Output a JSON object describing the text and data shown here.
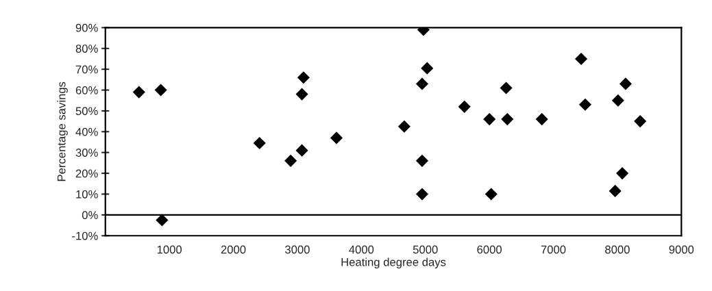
{
  "chart_data": {
    "type": "scatter",
    "xlabel": "Heating degree days",
    "ylabel": "Percentage savings",
    "x": [
      525,
      866,
      885,
      2409,
      2895,
      3071,
      3071,
      3096,
      3611,
      4670,
      4949,
      5027,
      4949,
      4949,
      4970,
      5610,
      6001,
      6028,
      6262,
      6280,
      6820,
      7434,
      7497,
      8010,
      8129,
      8077,
      7965,
      8356
    ],
    "values": [
      59,
      60,
      -2.5,
      34.5,
      26,
      31,
      58,
      66,
      37,
      42.5,
      63,
      70.5,
      26,
      10,
      89,
      52,
      46,
      10,
      61,
      46,
      46,
      75,
      53,
      55,
      63,
      20,
      11.5,
      45
    ],
    "color": "#000000",
    "marker": "diamond",
    "xlim": [
      0,
      9000
    ],
    "xticks": [
      1000,
      2000,
      3000,
      4000,
      5000,
      6000,
      7000,
      8000,
      9000
    ],
    "ylim": [
      -10,
      90
    ],
    "yticks": [
      {
        "value": -10,
        "label": "-10%"
      },
      {
        "value": 0,
        "label": "0%"
      },
      {
        "value": 10,
        "label": "10%"
      },
      {
        "value": 20,
        "label": "20%"
      },
      {
        "value": 30,
        "label": "30%"
      },
      {
        "value": 40,
        "label": "40%"
      },
      {
        "value": 50,
        "label": "50%"
      },
      {
        "value": 60,
        "label": "60%"
      },
      {
        "value": 70,
        "label": "70%"
      },
      {
        "value": 80,
        "label": "80%"
      },
      {
        "value": 90,
        "label": "90%"
      }
    ],
    "ref_lines": [
      {
        "axis": "y",
        "value": 0,
        "color": "#000000"
      }
    ],
    "grid": false,
    "legend": false
  }
}
